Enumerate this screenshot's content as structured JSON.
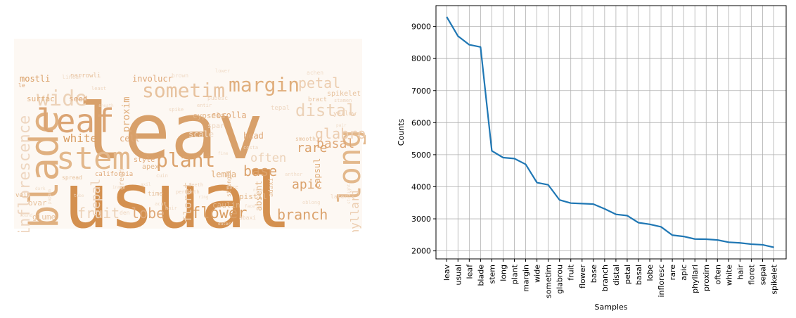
{
  "wordcloud": {
    "words": [
      {
        "text": "leav",
        "color": "#d8a06a"
      },
      {
        "text": "usual",
        "color": "#d4904f"
      },
      {
        "text": "blade",
        "color": "#e0b080"
      },
      {
        "text": "stem",
        "color": "#e3b88c"
      },
      {
        "text": "leaf",
        "color": "#dba473"
      },
      {
        "text": "long",
        "color": "#e3b88c"
      },
      {
        "text": "margin",
        "color": "#e0ae7c"
      },
      {
        "text": "sometim",
        "color": "#e7c29e"
      },
      {
        "text": "plant",
        "color": "#dba26c"
      },
      {
        "text": "wide",
        "color": "#ecd2b8"
      },
      {
        "text": "petal",
        "color": "#eccdb0"
      },
      {
        "text": "distal",
        "color": "#ecd2b8"
      },
      {
        "text": "glabrou",
        "color": "#eccdb0"
      },
      {
        "text": "inflorescence",
        "color": "#eed6c0"
      },
      {
        "text": "flower",
        "color": "#d99e64"
      },
      {
        "text": "branch",
        "color": "#dba26c"
      },
      {
        "text": "fruit",
        "color": "#ecd2b8"
      },
      {
        "text": "lobe",
        "color": "#dfa878"
      },
      {
        "text": "base",
        "color": "#dba26c"
      },
      {
        "text": "basal",
        "color": "#dfa878"
      },
      {
        "text": "rare",
        "color": "#dba26c"
      },
      {
        "text": "apic",
        "color": "#dba26c"
      },
      {
        "text": "often",
        "color": "#ecd2b8"
      },
      {
        "text": "white",
        "color": "#d99e64"
      },
      {
        "text": "proxim",
        "color": "#e0ae7c"
      },
      {
        "text": "phyllari",
        "color": "#eccdb0"
      },
      {
        "text": "floret",
        "color": "#ecd2b8"
      },
      {
        "text": "sepal",
        "color": "#eed6c0"
      },
      {
        "text": "involucr",
        "color": "#dfa878"
      },
      {
        "text": "mostli",
        "color": "#d99e64"
      },
      {
        "text": "surfac",
        "color": "#e0ae7c"
      },
      {
        "text": "seed",
        "color": "#dfa878"
      },
      {
        "text": "cell",
        "color": "#dfa878"
      },
      {
        "text": "corolla",
        "color": "#dfa878"
      },
      {
        "text": "lemma",
        "color": "#e0ae7c"
      },
      {
        "text": "capsul",
        "color": "#e0ae7c"
      },
      {
        "text": "head",
        "color": "#dfa878"
      },
      {
        "text": "pistil",
        "color": "#e3b88c"
      },
      {
        "text": "absent",
        "color": "#e3b88c"
      },
      {
        "text": "caulin",
        "color": "#e3b88c"
      },
      {
        "text": "style",
        "color": "#dfa878"
      },
      {
        "text": "apex",
        "color": "#e3b88c"
      },
      {
        "text": "scale",
        "color": "#f0dcc8"
      },
      {
        "text": "ovar",
        "color": "#e7c29e"
      },
      {
        "text": "glume",
        "color": "#e7c29e"
      },
      {
        "text": "green",
        "color": "#e7c29e"
      },
      {
        "text": "vein",
        "color": "#e3b88c"
      },
      {
        "text": "spar",
        "color": "#eed6c0"
      },
      {
        "text": "cypsela",
        "color": "#e3b88c"
      },
      {
        "text": "california",
        "color": "#dfa878"
      },
      {
        "text": "narrowli",
        "color": "#e7c29e"
      },
      {
        "text": "linear",
        "color": "#f0dcc8"
      },
      {
        "text": "brown",
        "color": "#f0dcc8"
      },
      {
        "text": "bract",
        "color": "#e7c29e"
      },
      {
        "text": "spikelet",
        "color": "#e7c29e"
      },
      {
        "text": "tepal",
        "color": "#eed6c0"
      },
      {
        "text": "pubesc",
        "color": "#eed6c0"
      },
      {
        "text": "strongli",
        "color": "#e3b88c"
      },
      {
        "text": "smooth",
        "color": "#e7c29e"
      },
      {
        "text": "spread",
        "color": "#e7c29e"
      },
      {
        "text": "time",
        "color": "#e7c29e"
      },
      {
        "text": "den",
        "color": "#eed6c0"
      },
      {
        "text": "adaxi",
        "color": "#e7c29e"
      },
      {
        "text": "abaxi",
        "color": "#eed6c0"
      },
      {
        "text": "later",
        "color": "#eed6c0"
      },
      {
        "text": "le",
        "color": "#dfa878"
      },
      {
        "text": "spike",
        "color": "#eed6c0"
      },
      {
        "text": "achen",
        "color": "#f0dcc8"
      },
      {
        "text": "lower",
        "color": "#f0dcc8"
      },
      {
        "text": "least",
        "color": "#eed6c0"
      },
      {
        "text": "yellow",
        "color": "#eccdb0"
      },
      {
        "text": "entir",
        "color": "#eed6c0"
      },
      {
        "text": "cuin",
        "color": "#eed6c0"
      },
      {
        "text": "perianth",
        "color": "#eed6c0"
      },
      {
        "text": "teeth",
        "color": "#eed6c0"
      },
      {
        "text": "stamen",
        "color": "#eed6c0"
      },
      {
        "text": "costa",
        "color": "#eed6c0"
      },
      {
        "text": "pure",
        "color": "#eed6c0"
      },
      {
        "text": "anther",
        "color": "#f0dcc8"
      },
      {
        "text": "oblong",
        "color": "#f0dcc8"
      },
      {
        "text": "acut",
        "color": "#f0dcc8"
      },
      {
        "text": "hair",
        "color": "#f0dcc8"
      },
      {
        "text": "round",
        "color": "#f0dcc8"
      },
      {
        "text": "pappus",
        "color": "#f0dcc8"
      },
      {
        "text": "straight",
        "color": "#f0dcc8"
      },
      {
        "text": "face",
        "color": "#f0dcc8"
      },
      {
        "text": "axil",
        "color": "#f0dcc8"
      },
      {
        "text": "outer",
        "color": "#f0dcc8"
      },
      {
        "text": "inner",
        "color": "#f0dcc8"
      },
      {
        "text": "node",
        "color": "#f0dcc8"
      },
      {
        "text": "sheath",
        "color": "#f0dcc8"
      },
      {
        "text": "dark",
        "color": "#f0dcc8"
      },
      {
        "text": "ring",
        "color": "#f0dcc8"
      },
      {
        "text": "tube",
        "color": "#f0dcc8"
      },
      {
        "text": "pair",
        "color": "#f0dcc8"
      },
      {
        "text": "fine",
        "color": "#f0dcc8"
      }
    ]
  },
  "chart_data": {
    "type": "line",
    "xlabel": "Samples",
    "ylabel": "Counts",
    "categories": [
      "leav",
      "usual",
      "leaf",
      "blade",
      "stem",
      "long",
      "plant",
      "margin",
      "wide",
      "sometim",
      "glabrou",
      "fruit",
      "flower",
      "base",
      "branch",
      "distal",
      "petal",
      "basal",
      "lobe",
      "infloresc",
      "rare",
      "apic",
      "phyllari",
      "proxim",
      "often",
      "white",
      "hair",
      "floret",
      "sepal",
      "spikelet"
    ],
    "values": [
      9300,
      8700,
      8430,
      8360,
      5120,
      4910,
      4880,
      4700,
      4130,
      4060,
      3590,
      3490,
      3475,
      3460,
      3310,
      3140,
      3100,
      2880,
      2830,
      2750,
      2490,
      2450,
      2370,
      2365,
      2340,
      2270,
      2250,
      2210,
      2190,
      2110
    ],
    "ylim": [
      1750,
      9650
    ],
    "yticks": [
      2000,
      3000,
      4000,
      5000,
      6000,
      7000,
      8000,
      9000
    ],
    "grid": true,
    "line_color": "#1f77b4"
  }
}
